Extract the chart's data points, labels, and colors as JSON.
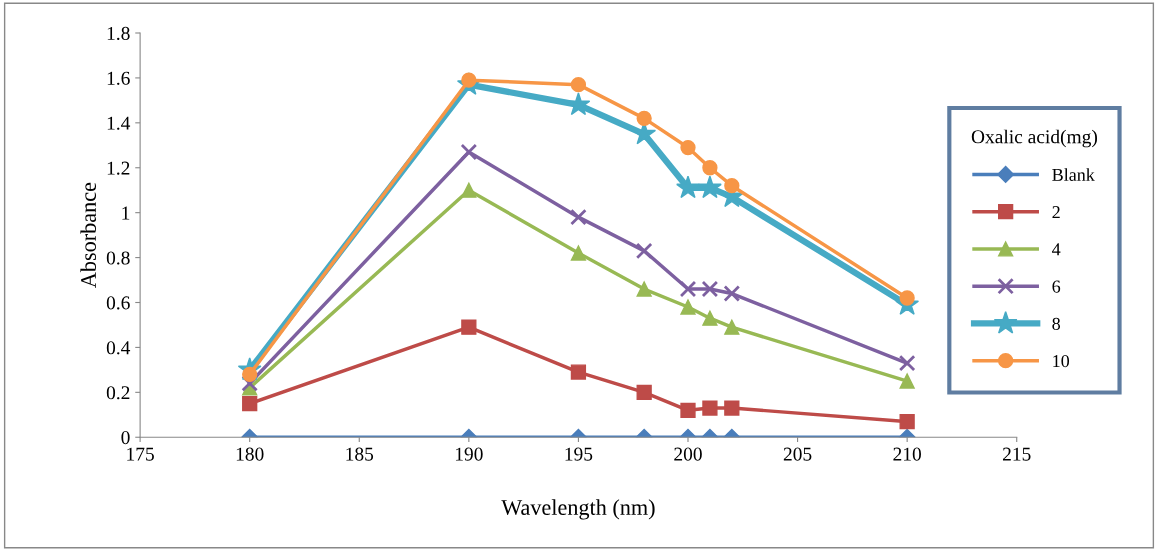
{
  "chart_data": {
    "type": "line",
    "xlabel": "Wavelength (nm)",
    "ylabel": "Absorbance",
    "legend_title": "Oxalic acid(mg)",
    "legend": "right",
    "grid": false,
    "x": [
      180,
      190,
      195,
      198,
      200,
      201,
      202,
      210
    ],
    "xlim": [
      175,
      215
    ],
    "xticks": [
      175,
      180,
      185,
      190,
      195,
      200,
      205,
      210,
      215
    ],
    "ylim": [
      0,
      1.8
    ],
    "yticks": [
      0,
      0.2,
      0.4,
      0.6,
      0.8,
      1,
      1.2,
      1.4,
      1.6,
      1.8
    ],
    "series": [
      {
        "name": "Blank",
        "color": "#4a7ebb",
        "marker": "diamond",
        "values": [
          0,
          0,
          0,
          0,
          0,
          0,
          0,
          0
        ]
      },
      {
        "name": "2",
        "color": "#be4b48",
        "marker": "square",
        "values": [
          0.15,
          0.49,
          0.29,
          0.2,
          0.12,
          0.13,
          0.13,
          0.07
        ]
      },
      {
        "name": "4",
        "color": "#98b954",
        "marker": "triangle",
        "values": [
          0.22,
          1.1,
          0.82,
          0.66,
          0.58,
          0.53,
          0.49,
          0.25
        ]
      },
      {
        "name": "6",
        "color": "#7d60a0",
        "marker": "cross",
        "values": [
          0.24,
          1.27,
          0.98,
          0.83,
          0.66,
          0.66,
          0.64,
          0.33
        ]
      },
      {
        "name": "8",
        "color": "#46aac5",
        "marker": "star",
        "values": [
          0.3,
          1.57,
          1.48,
          1.35,
          1.11,
          1.11,
          1.07,
          0.59
        ]
      },
      {
        "name": "10",
        "color": "#f79646",
        "marker": "circle",
        "values": [
          0.28,
          1.59,
          1.57,
          1.42,
          1.29,
          1.2,
          1.12,
          0.62
        ]
      }
    ]
  }
}
